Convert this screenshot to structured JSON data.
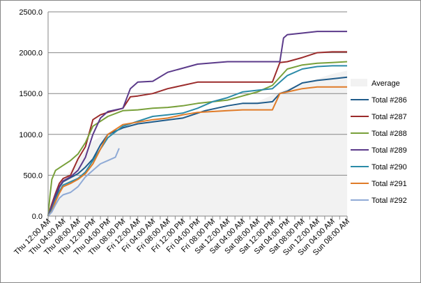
{
  "chart_data": {
    "type": "line",
    "title": "",
    "xlabel": "",
    "ylabel": "",
    "ylim": [
      0,
      2500
    ],
    "y_ticks": [
      "0.0",
      "500.0",
      "1000.0",
      "1500.0",
      "2000.0",
      "2500.0"
    ],
    "x_tick_labels": [
      "Thu 12:00 AM",
      "Thu 04:00 AM",
      "Thu 08:00 AM",
      "Thu 12:00 PM",
      "Thu 04:00 PM",
      "Thu 08:00 PM",
      "Fri 12:00 AM",
      "Fri 04:00 AM",
      "Fri 08:00 AM",
      "Fri 12:00 PM",
      "Fri 04:00 PM",
      "Fri 08:00 PM",
      "Sat 12:00 AM",
      "Sat 04:00 AM",
      "Sat 08:00 AM",
      "Sat 12:00 PM",
      "Sat 04:00 PM",
      "Sat 08:00 PM",
      "Sun 12:00 AM",
      "Sun 04:00 AM",
      "Sun 08:00 AM"
    ],
    "x_unit": "hours from Thu 12:00 AM",
    "xlim": [
      0,
      80
    ],
    "grid": "horizontal",
    "legend": "right",
    "average": {
      "name": "Average",
      "color": "#f2f2f2",
      "x": [
        0,
        1,
        2,
        4,
        6,
        8,
        10,
        12,
        16,
        20,
        24,
        28,
        32,
        36,
        40,
        44,
        48,
        52,
        56,
        60,
        64,
        68,
        72,
        76,
        80
      ],
      "y": [
        0,
        180,
        320,
        450,
        560,
        680,
        800,
        920,
        1020,
        1080,
        1120,
        1160,
        1200,
        1230,
        1260,
        1300,
        1330,
        1370,
        1400,
        1480,
        1560,
        1620,
        1680,
        1740,
        1780
      ]
    },
    "series": [
      {
        "name": "Total #286",
        "color": "#1f5b8a",
        "x": [
          0,
          1,
          2,
          3,
          4,
          6,
          8,
          10,
          12,
          14,
          16,
          20,
          24,
          36,
          42,
          48,
          52,
          56,
          60,
          62,
          64,
          68,
          72,
          76,
          80
        ],
        "y": [
          0,
          100,
          220,
          350,
          420,
          470,
          520,
          600,
          700,
          870,
          1000,
          1080,
          1130,
          1200,
          1290,
          1350,
          1380,
          1380,
          1400,
          1500,
          1530,
          1630,
          1660,
          1680,
          1700
        ]
      },
      {
        "name": "Total #287",
        "color": "#9b2b2b",
        "x": [
          0,
          1,
          2,
          3,
          4,
          6,
          8,
          10,
          12,
          14,
          16,
          20,
          22,
          24,
          28,
          32,
          36,
          40,
          48,
          52,
          56,
          60,
          62,
          64,
          68,
          72,
          76,
          80
        ],
        "y": [
          0,
          150,
          280,
          400,
          460,
          500,
          700,
          850,
          1180,
          1240,
          1270,
          1320,
          1460,
          1470,
          1500,
          1560,
          1600,
          1640,
          1640,
          1640,
          1640,
          1640,
          1880,
          1890,
          1940,
          2000,
          2010,
          2010
        ]
      },
      {
        "name": "Total #288",
        "color": "#78a03a",
        "x": [
          0,
          0.5,
          1,
          2,
          4,
          6,
          8,
          10,
          12,
          16,
          20,
          24,
          28,
          32,
          36,
          40,
          48,
          52,
          56,
          60,
          64,
          68,
          72,
          76,
          80
        ],
        "y": [
          0,
          250,
          450,
          560,
          620,
          680,
          760,
          900,
          1100,
          1220,
          1290,
          1300,
          1320,
          1330,
          1350,
          1380,
          1420,
          1470,
          1520,
          1600,
          1800,
          1850,
          1870,
          1880,
          1890
        ]
      },
      {
        "name": "Total #289",
        "color": "#5b3a8a",
        "x": [
          0,
          1,
          2,
          3,
          4,
          6,
          8,
          10,
          12,
          14,
          16,
          20,
          22,
          24,
          28,
          32,
          40,
          48,
          56,
          60,
          62,
          63,
          64,
          68,
          72,
          76,
          80
        ],
        "y": [
          0,
          120,
          260,
          360,
          430,
          480,
          560,
          720,
          1000,
          1200,
          1280,
          1320,
          1560,
          1640,
          1650,
          1760,
          1860,
          1890,
          1890,
          1890,
          1890,
          2180,
          2220,
          2240,
          2260,
          2260,
          2260
        ]
      },
      {
        "name": "Total #290",
        "color": "#2b8ba8",
        "x": [
          0,
          1,
          2,
          3,
          4,
          6,
          8,
          10,
          12,
          14,
          16,
          20,
          24,
          28,
          32,
          36,
          40,
          44,
          48,
          52,
          56,
          60,
          64,
          68,
          72,
          76,
          80
        ],
        "y": [
          0,
          80,
          200,
          300,
          380,
          420,
          460,
          540,
          680,
          820,
          960,
          1100,
          1160,
          1220,
          1240,
          1260,
          1320,
          1400,
          1450,
          1520,
          1540,
          1560,
          1720,
          1800,
          1830,
          1840,
          1840
        ]
      },
      {
        "name": "Total #291",
        "color": "#e07b28",
        "x": [
          0,
          1,
          2,
          3,
          4,
          6,
          8,
          10,
          12,
          14,
          16,
          20,
          24,
          28,
          32,
          36,
          40,
          44,
          48,
          52,
          56,
          60,
          62,
          64,
          68,
          72,
          76,
          80
        ],
        "y": [
          0,
          60,
          180,
          280,
          360,
          400,
          450,
          520,
          640,
          820,
          1000,
          1120,
          1150,
          1180,
          1200,
          1240,
          1270,
          1280,
          1290,
          1300,
          1300,
          1300,
          1500,
          1520,
          1560,
          1580,
          1580,
          1580
        ]
      },
      {
        "name": "Total #292",
        "color": "#8faad6",
        "x": [
          0,
          1,
          2,
          3,
          4,
          6,
          8,
          10,
          12,
          14,
          16,
          18,
          19
        ],
        "y": [
          0,
          50,
          140,
          220,
          260,
          290,
          360,
          480,
          560,
          640,
          680,
          720,
          830
        ]
      }
    ]
  }
}
